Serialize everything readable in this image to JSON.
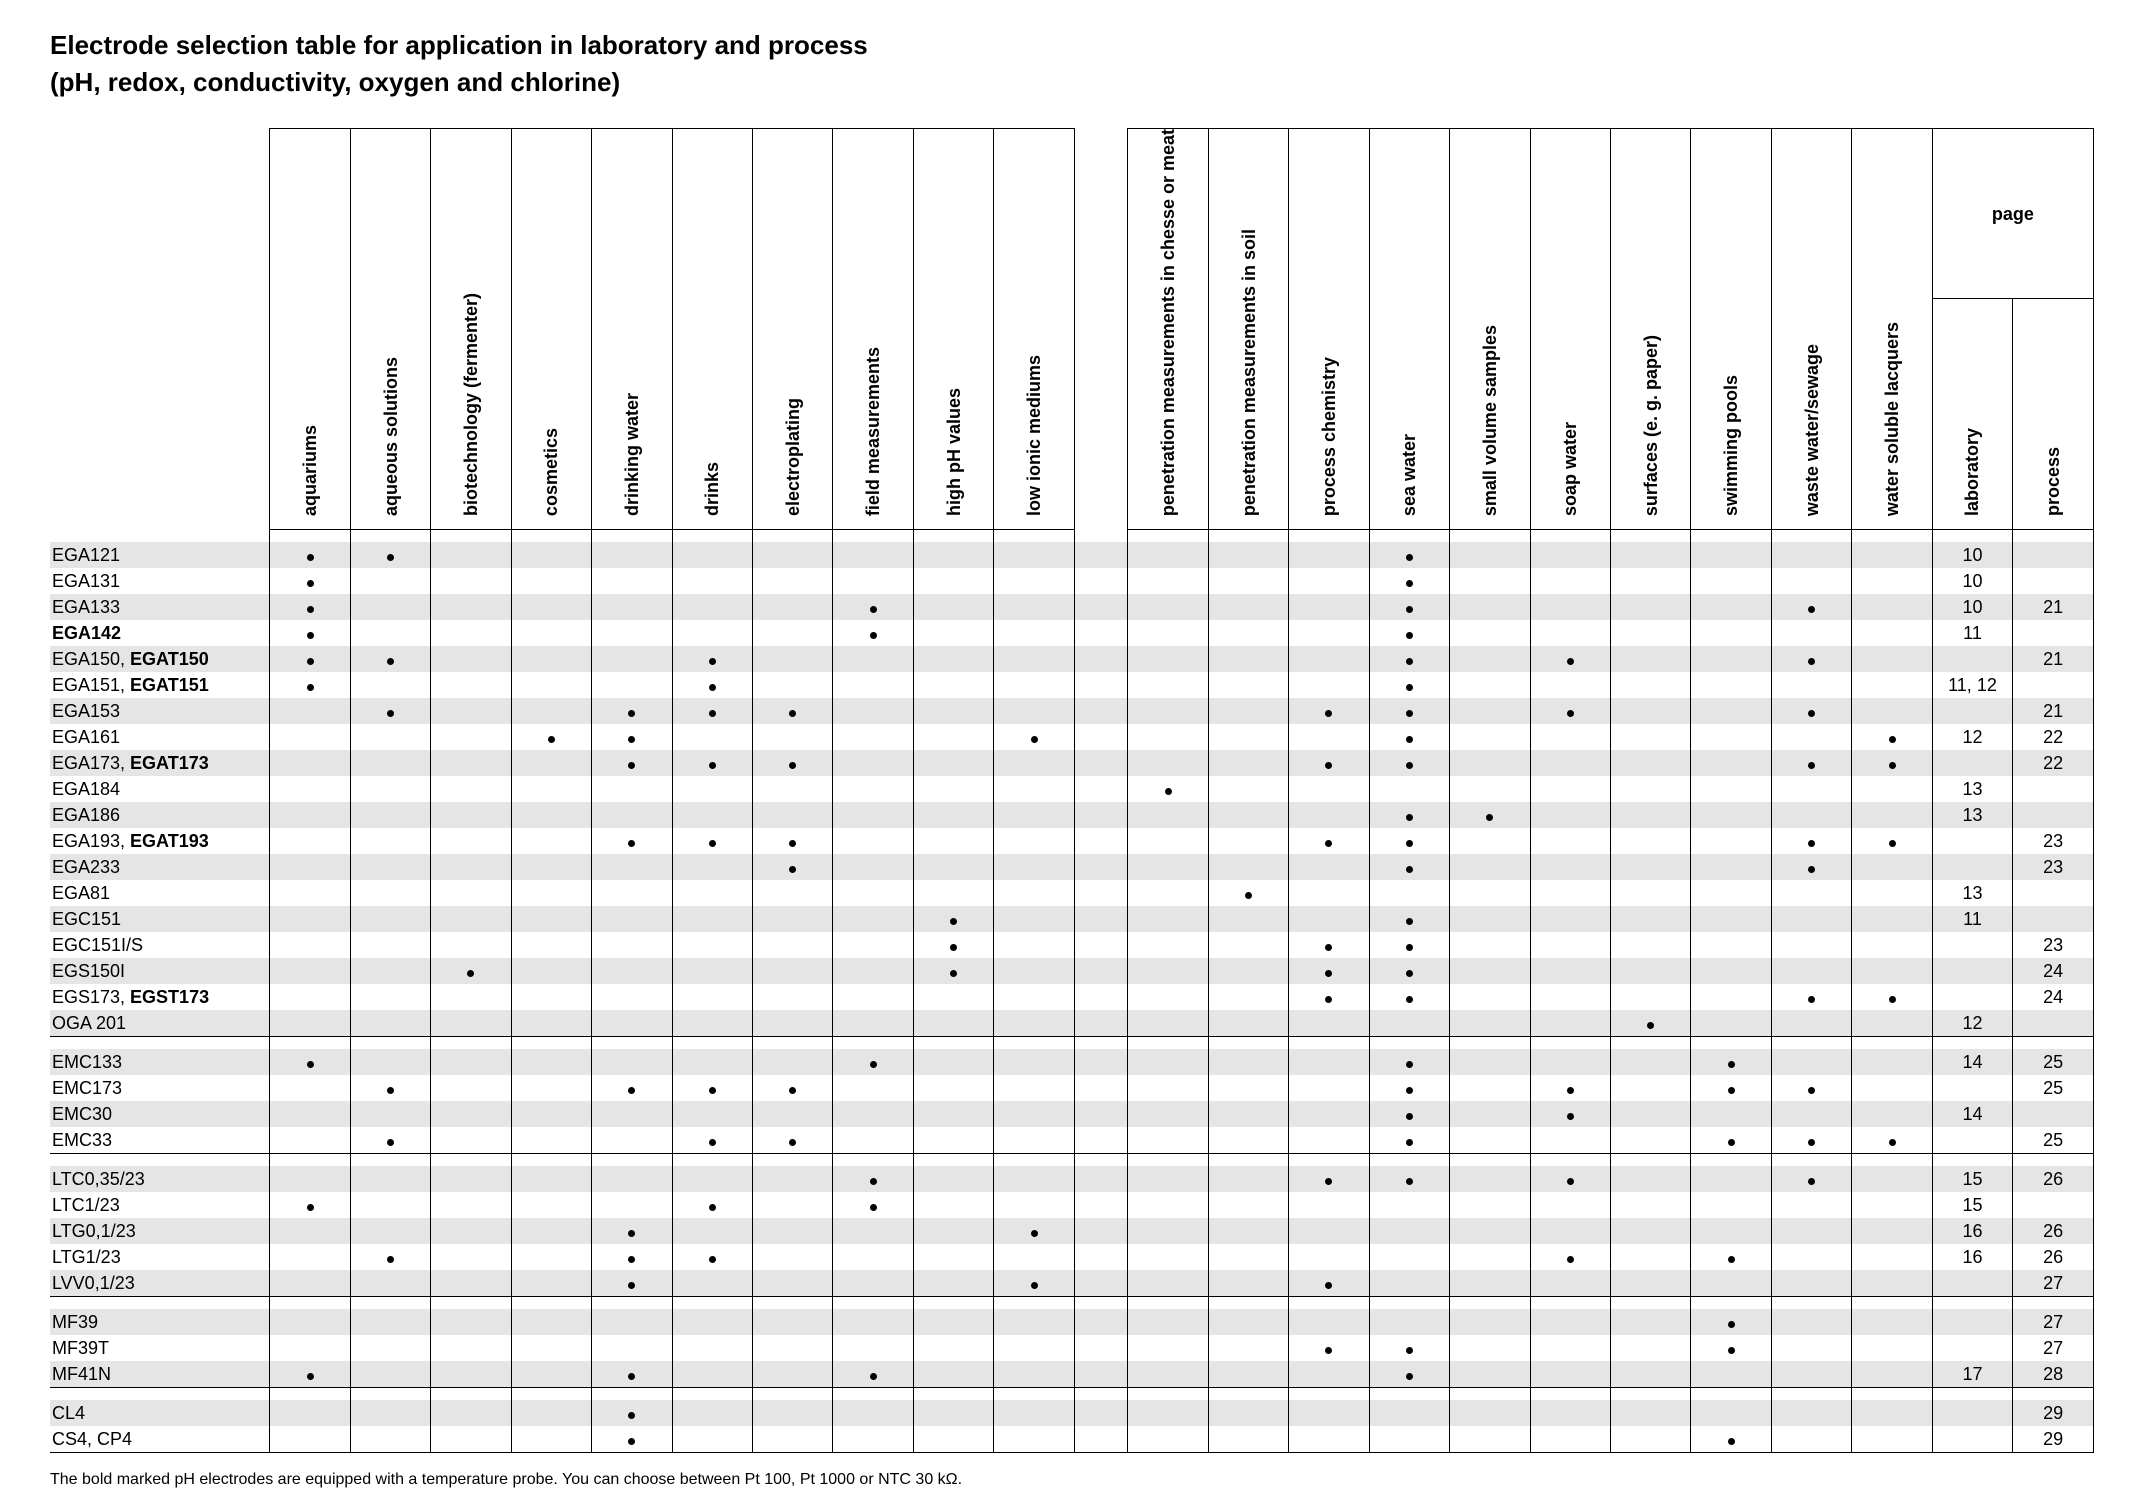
{
  "title": "Electrode selection table for application in laboratory and process",
  "subtitle": "(pH, redox, conductivity, oxygen and chlorine)",
  "footnote": "The bold marked pH electrodes are equipped with a temperature probe. You can choose between Pt 100, Pt 1000 or NTC 30 kΩ.",
  "page_header": "page",
  "colors": {
    "stripe": "#e5e5e5",
    "background": "#ffffff",
    "border": "#000000",
    "text": "#000000"
  },
  "columns": [
    "aquariums",
    "aqueous solutions",
    "biotechnology\n(fermenter)",
    "cosmetics",
    "drinking water",
    "drinks",
    "electroplating",
    "field measurements",
    "high pH values",
    "low ionic mediums",
    "penetration\nmeasurements in chesse\nor meat",
    "penetration\nmeasurements in soil",
    "process chemistry",
    "sea water",
    "small volume samples",
    "soap water",
    "surfaces\n(e. g. paper)",
    "swimming pools",
    "waste water/sewage",
    "water soluble lacquers"
  ],
  "page_columns": [
    "laboratory",
    "process"
  ],
  "gap_after_index": 9,
  "sections": [
    {
      "rows": [
        {
          "label_html": "EGA121",
          "dots": [
            0,
            1,
            13
          ],
          "lab": "10",
          "proc": ""
        },
        {
          "label_html": "EGA131",
          "dots": [
            0,
            13
          ],
          "lab": "10",
          "proc": ""
        },
        {
          "label_html": "EGA133",
          "dots": [
            0,
            7,
            13,
            18
          ],
          "lab": "10",
          "proc": "21"
        },
        {
          "label_html": "<b>EGA142</b>",
          "dots": [
            0,
            7,
            13
          ],
          "lab": "11",
          "proc": ""
        },
        {
          "label_html": "EGA150, <b>EGAT150</b>",
          "dots": [
            0,
            1,
            5,
            13,
            15,
            18
          ],
          "lab": "",
          "proc": "21"
        },
        {
          "label_html": "EGA151, <b>EGAT151</b>",
          "dots": [
            0,
            5,
            13
          ],
          "lab": "11, 12",
          "proc": ""
        },
        {
          "label_html": "EGA153",
          "dots": [
            1,
            4,
            5,
            6,
            12,
            13,
            15,
            18
          ],
          "lab": "",
          "proc": "21"
        },
        {
          "label_html": "EGA161",
          "dots": [
            3,
            4,
            9,
            13,
            19
          ],
          "lab": "12",
          "proc": "22"
        },
        {
          "label_html": "EGA173, <b>EGAT173</b>",
          "dots": [
            4,
            5,
            6,
            12,
            13,
            18,
            19
          ],
          "lab": "",
          "proc": "22"
        },
        {
          "label_html": "EGA184",
          "dots": [
            10
          ],
          "lab": "13",
          "proc": ""
        },
        {
          "label_html": "EGA186",
          "dots": [
            13,
            14
          ],
          "lab": "13",
          "proc": ""
        },
        {
          "label_html": "EGA193, <b>EGAT193</b>",
          "dots": [
            4,
            5,
            6,
            12,
            13,
            18,
            19
          ],
          "lab": "",
          "proc": "23"
        },
        {
          "label_html": "EGA233",
          "dots": [
            6,
            13,
            18
          ],
          "lab": "",
          "proc": "23"
        },
        {
          "label_html": "EGA81",
          "dots": [
            11
          ],
          "lab": "13",
          "proc": ""
        },
        {
          "label_html": "EGC151",
          "dots": [
            8,
            13
          ],
          "lab": "11",
          "proc": ""
        },
        {
          "label_html": "EGC151I/S",
          "dots": [
            8,
            12,
            13
          ],
          "lab": "",
          "proc": "23"
        },
        {
          "label_html": "EGS150I",
          "dots": [
            2,
            8,
            12,
            13
          ],
          "lab": "",
          "proc": "24"
        },
        {
          "label_html": "EGS173, <b>EGST173</b>",
          "dots": [
            12,
            13,
            18,
            19
          ],
          "lab": "",
          "proc": "24"
        },
        {
          "label_html": "OGA 201",
          "dots": [
            16
          ],
          "lab": "12",
          "proc": ""
        }
      ]
    },
    {
      "rows": [
        {
          "label_html": "EMC133",
          "dots": [
            0,
            7,
            13,
            17
          ],
          "lab": "14",
          "proc": "25"
        },
        {
          "label_html": "EMC173",
          "dots": [
            1,
            4,
            5,
            6,
            13,
            15,
            17,
            18
          ],
          "lab": "",
          "proc": "25"
        },
        {
          "label_html": "EMC30",
          "dots": [
            13,
            15
          ],
          "lab": "14",
          "proc": ""
        },
        {
          "label_html": "EMC33",
          "dots": [
            1,
            5,
            6,
            13,
            17,
            18,
            19
          ],
          "lab": "",
          "proc": "25"
        }
      ]
    },
    {
      "rows": [
        {
          "label_html": "LTC0,35/23",
          "dots": [
            7,
            12,
            13,
            15,
            18
          ],
          "lab": "15",
          "proc": "26"
        },
        {
          "label_html": "LTC1/23",
          "dots": [
            0,
            5,
            7
          ],
          "lab": "15",
          "proc": ""
        },
        {
          "label_html": "LTG0,1/23",
          "dots": [
            4,
            9
          ],
          "lab": "16",
          "proc": "26"
        },
        {
          "label_html": "LTG1/23",
          "dots": [
            1,
            4,
            5,
            15,
            17
          ],
          "lab": "16",
          "proc": "26"
        },
        {
          "label_html": "LVV0,1/23",
          "dots": [
            4,
            9,
            12
          ],
          "lab": "",
          "proc": "27"
        }
      ]
    },
    {
      "rows": [
        {
          "label_html": "MF39",
          "dots": [
            17
          ],
          "lab": "",
          "proc": "27"
        },
        {
          "label_html": "MF39T",
          "dots": [
            12,
            13,
            17
          ],
          "lab": "",
          "proc": "27"
        },
        {
          "label_html": "MF41N",
          "dots": [
            0,
            4,
            7,
            13
          ],
          "lab": "17",
          "proc": "28"
        }
      ]
    },
    {
      "rows": [
        {
          "label_html": "CL4",
          "dots": [
            4
          ],
          "lab": "",
          "proc": "29"
        },
        {
          "label_html": "CS4, CP4",
          "dots": [
            4,
            17
          ],
          "lab": "",
          "proc": "29"
        }
      ]
    }
  ]
}
